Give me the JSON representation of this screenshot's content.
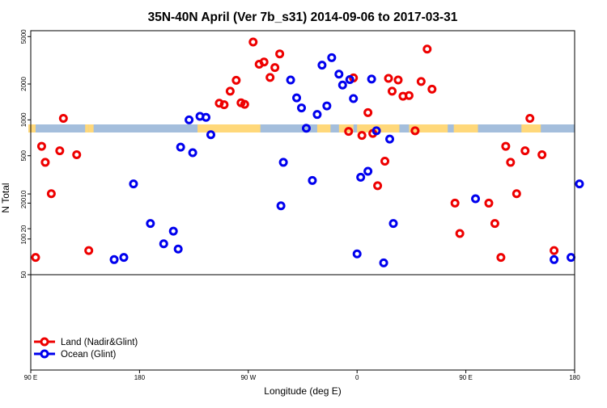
{
  "chart_data": {
    "type": "scatter",
    "title": "35N-40N April (Ver 7b_s31)   2014-09-06 to 2017-03-31",
    "xlabel": "Longitude (deg E)",
    "ylabel": "N Total",
    "x_ticks": [
      {
        "value": 90,
        "label": "90 E"
      },
      {
        "value": 180,
        "label": "180"
      },
      {
        "value": 270,
        "label": "90 W"
      },
      {
        "value": 360,
        "label": "0"
      },
      {
        "value": 450,
        "label": "90 E"
      },
      {
        "value": 540,
        "label": "180"
      }
    ],
    "y_ticks_upper": [
      {
        "value": 100,
        "label": "100"
      },
      {
        "value": 200,
        "label": "200"
      },
      {
        "value": 500,
        "label": "500"
      },
      {
        "value": 1000,
        "label": "1000"
      },
      {
        "value": 2000,
        "label": "2000"
      },
      {
        "value": 5000,
        "label": "5000"
      }
    ],
    "y_ticks_lower": [
      {
        "value": 10,
        "label": "10"
      },
      {
        "value": 20,
        "label": "20"
      },
      {
        "value": 50,
        "label": "50"
      }
    ],
    "y_scale": "log",
    "legend": {
      "position": "bottom-left"
    },
    "colors": {
      "land": "#ee0000",
      "ocean": "#0000ee",
      "land_strip": "#ffd87a",
      "ocean_strip": "#a4bedc"
    },
    "land_intervals": [
      [
        88,
        94
      ],
      [
        138,
        142
      ],
      [
        135,
        138
      ],
      [
        228,
        280
      ],
      [
        327,
        338
      ],
      [
        345,
        357
      ],
      [
        360,
        388
      ],
      [
        385,
        395
      ],
      [
        403,
        435
      ],
      [
        440,
        460
      ],
      [
        496,
        512
      ]
    ],
    "upper_series": [
      {
        "name": "Land (Nadir&Glint)",
        "points": [
          [
            94,
            70
          ],
          [
            99,
            600
          ],
          [
            102,
            440
          ],
          [
            107,
            240
          ],
          [
            114,
            550
          ],
          [
            117,
            1030
          ],
          [
            128,
            510
          ],
          [
            138,
            80
          ],
          [
            246,
            1380
          ],
          [
            250,
            1340
          ],
          [
            255,
            1740
          ],
          [
            260,
            2150
          ],
          [
            264,
            1390
          ],
          [
            267,
            1350
          ],
          [
            274,
            4500
          ],
          [
            279,
            2930
          ],
          [
            283,
            3060
          ],
          [
            288,
            2270
          ],
          [
            292,
            2750
          ],
          [
            296,
            3580
          ],
          [
            353,
            800
          ],
          [
            357,
            2250
          ],
          [
            364,
            740
          ],
          [
            369,
            1150
          ],
          [
            373,
            770
          ],
          [
            377,
            280
          ],
          [
            383,
            450
          ],
          [
            386,
            2230
          ],
          [
            389,
            1740
          ],
          [
            394,
            2160
          ],
          [
            398,
            1580
          ],
          [
            403,
            1600
          ],
          [
            408,
            810
          ],
          [
            413,
            2100
          ],
          [
            418,
            3930
          ],
          [
            422,
            1810
          ],
          [
            469,
            200
          ],
          [
            474,
            135
          ],
          [
            479,
            70
          ],
          [
            483,
            600
          ],
          [
            487,
            440
          ],
          [
            492,
            240
          ],
          [
            499,
            550
          ],
          [
            503,
            1030
          ],
          [
            513,
            510
          ],
          [
            523,
            80
          ]
        ]
      },
      {
        "name": "Ocean (Glint)",
        "points": [
          [
            167,
            70
          ],
          [
            175,
            290
          ],
          [
            189,
            135
          ],
          [
            214,
            590
          ],
          [
            221,
            1000
          ],
          [
            224,
            530
          ],
          [
            230,
            1070
          ],
          [
            235,
            1050
          ],
          [
            239,
            750
          ],
          [
            297,
            190
          ],
          [
            299,
            440
          ],
          [
            305,
            2160
          ],
          [
            310,
            1530
          ],
          [
            314,
            1260
          ],
          [
            318,
            850
          ],
          [
            323,
            310
          ],
          [
            327,
            1110
          ],
          [
            331,
            2880
          ],
          [
            335,
            1310
          ],
          [
            339,
            3330
          ],
          [
            345,
            2420
          ],
          [
            348,
            1960
          ],
          [
            354,
            2180
          ],
          [
            357,
            1510
          ],
          [
            360,
            75
          ],
          [
            363,
            330
          ],
          [
            369,
            370
          ],
          [
            372,
            2200
          ],
          [
            376,
            810
          ],
          [
            382,
            63
          ],
          [
            387,
            690
          ],
          [
            390,
            135
          ],
          [
            537,
            70
          ],
          [
            544,
            290
          ]
        ]
      }
    ],
    "lower_series": [
      {
        "name": "Ocean (Glint)",
        "points": [
          [
            159,
            37
          ],
          [
            200,
            27
          ],
          [
            208,
            21
          ],
          [
            212,
            30
          ],
          [
            523,
            37
          ],
          [
            458,
            11
          ]
        ]
      },
      {
        "name": "Land (Nadir&Glint)",
        "points": [
          [
            441,
            12
          ],
          [
            445,
            22
          ]
        ]
      }
    ]
  },
  "legend_items": [
    {
      "label": "Land (Nadir&Glint)",
      "color": "#ee0000"
    },
    {
      "label": "Ocean (Glint)",
      "color": "#0000ee"
    }
  ]
}
